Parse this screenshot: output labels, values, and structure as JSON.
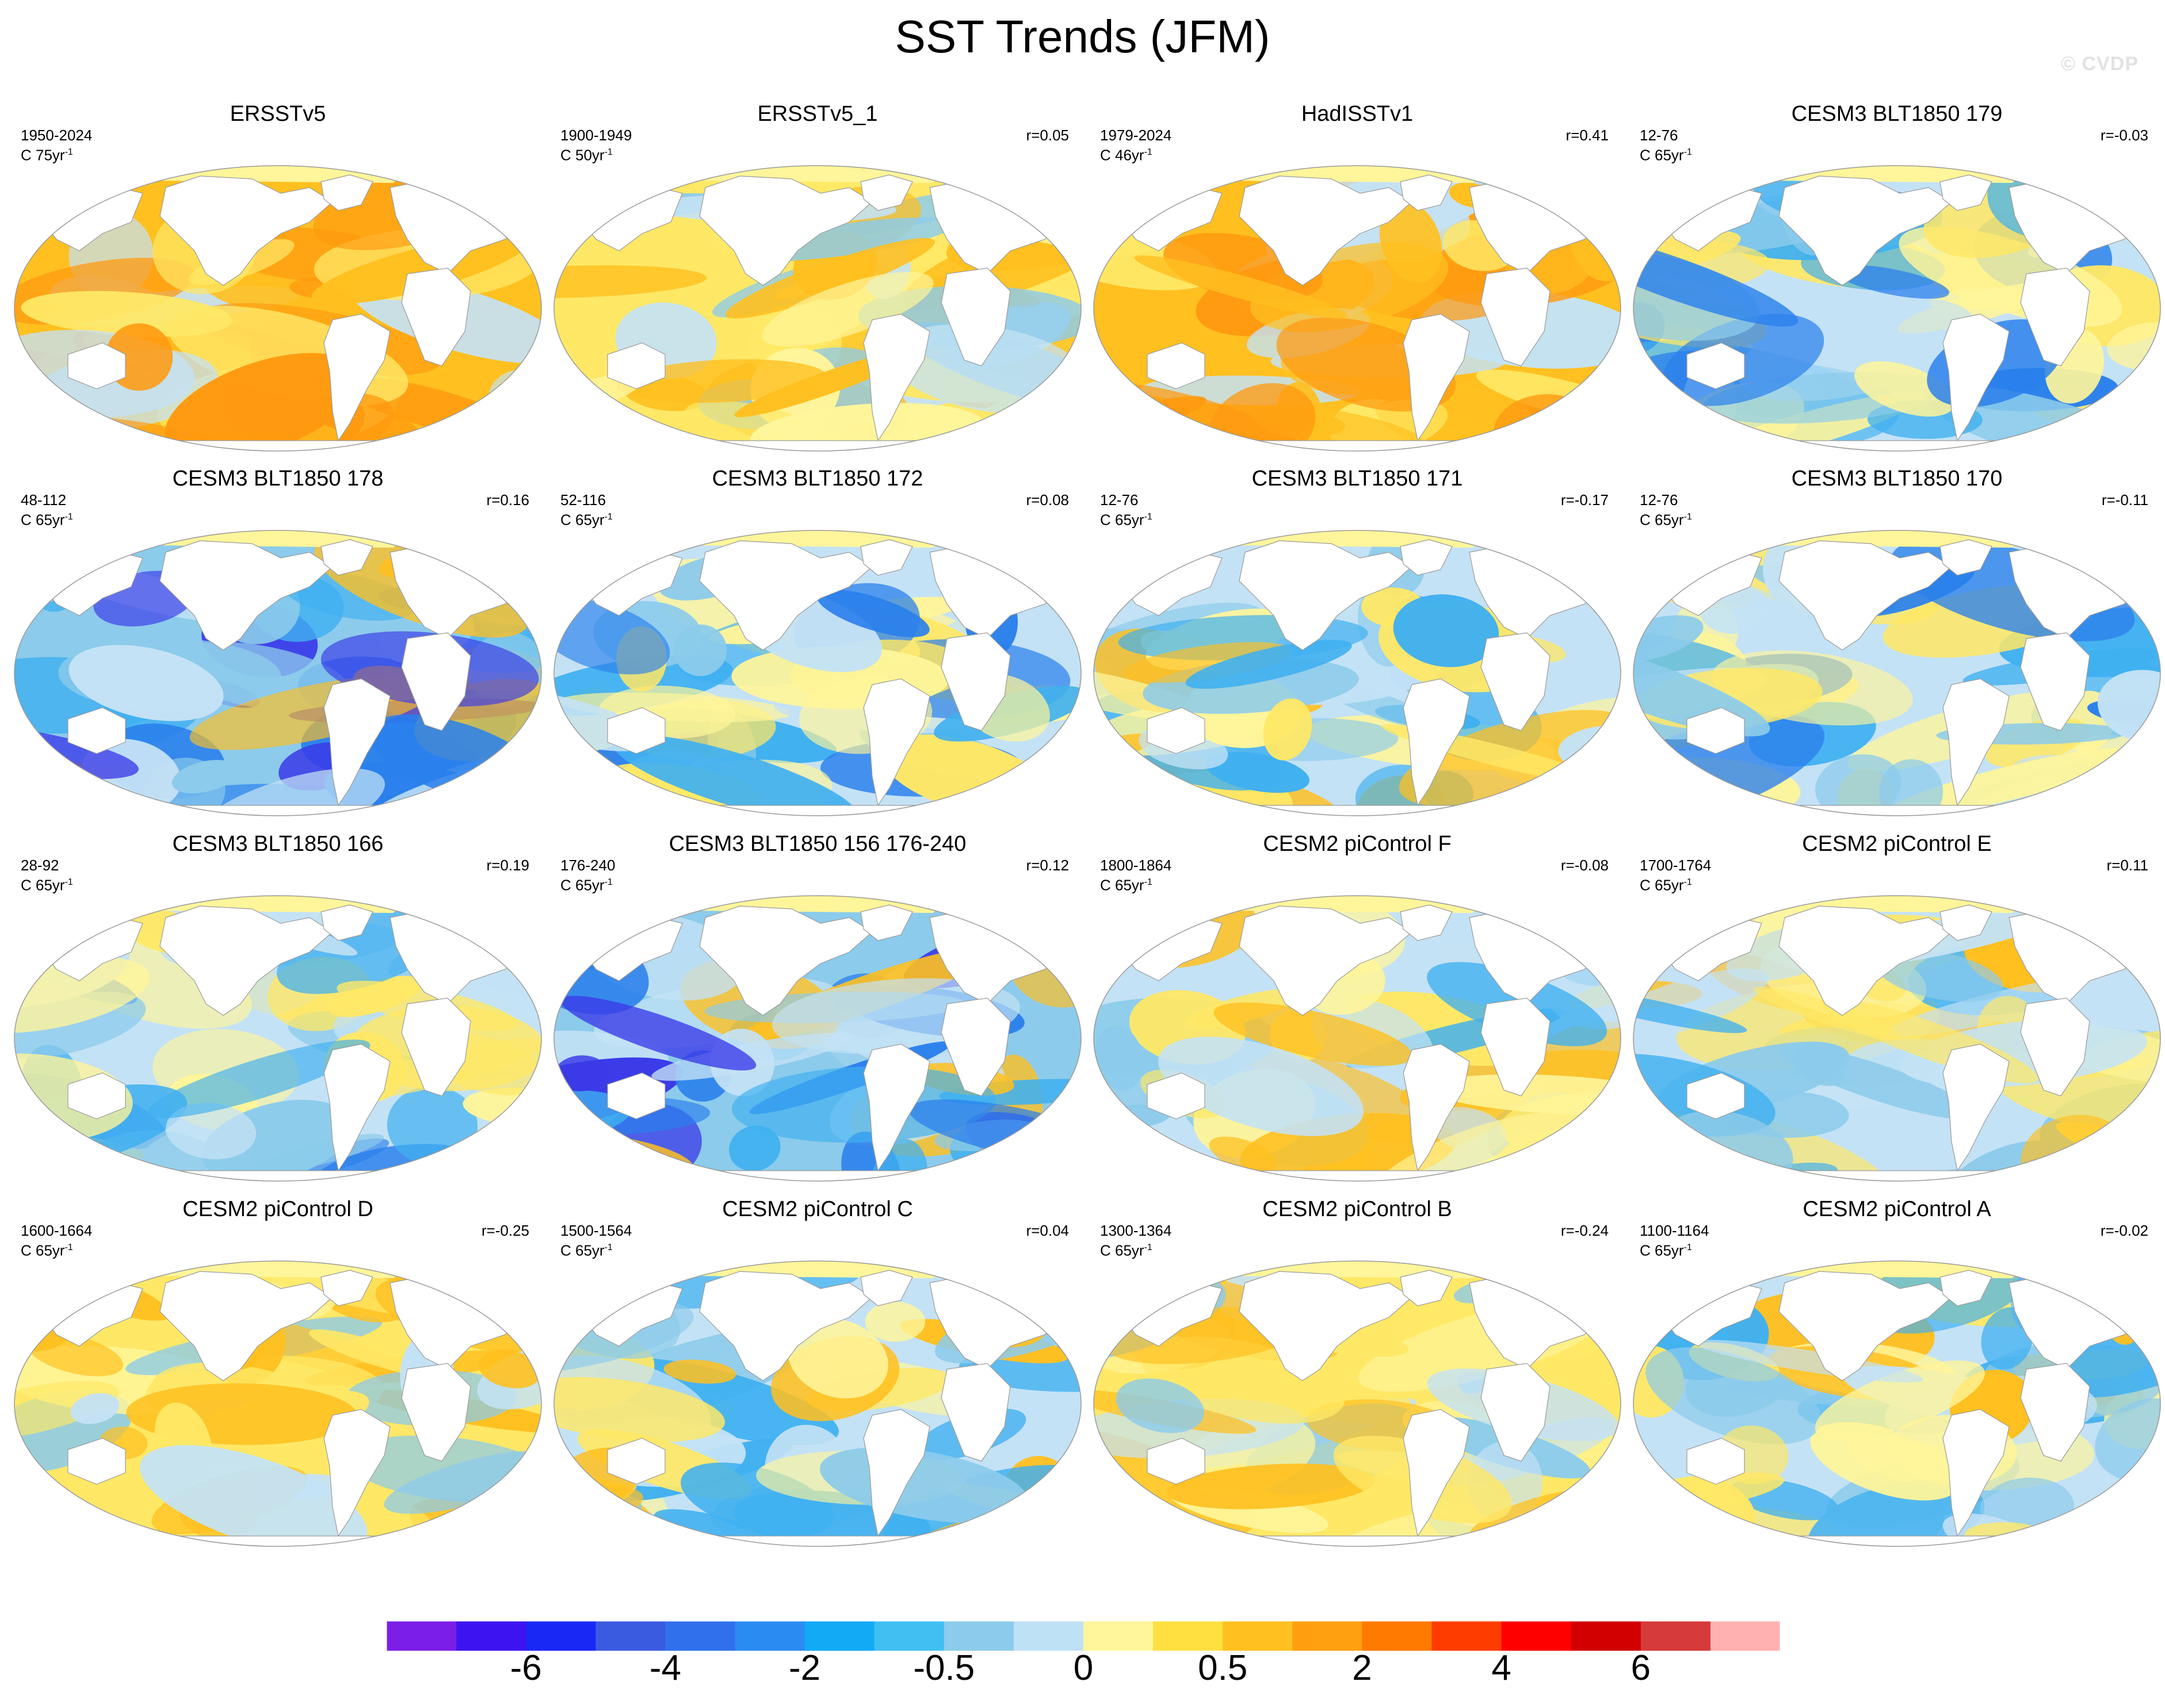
{
  "title": "SST Trends (JFM)",
  "watermark": "© CVDP",
  "panels": [
    {
      "title": "ERSSTv5",
      "years": "1950-2024",
      "rate_prefix": "C 75yr",
      "rate_exp": "-1",
      "corr": "",
      "pattern": "warm-strong"
    },
    {
      "title": "ERSSTv5_1",
      "years": "1900-1949",
      "rate_prefix": "C 50yr",
      "rate_exp": "-1",
      "corr": "r=0.05",
      "pattern": "warm-mixed"
    },
    {
      "title": "HadISSTv1",
      "years": "1979-2024",
      "rate_prefix": "C 46yr",
      "rate_exp": "-1",
      "corr": "r=0.41",
      "pattern": "warm-strong"
    },
    {
      "title": "CESM3 BLT1850 179",
      "years": "12-76",
      "rate_prefix": "C 65yr",
      "rate_exp": "-1",
      "corr": "r=-0.03",
      "pattern": "cool-mixed"
    },
    {
      "title": "CESM3 BLT1850 178",
      "years": "48-112",
      "rate_prefix": "C 65yr",
      "rate_exp": "-1",
      "corr": "r=0.16",
      "pattern": "cool-strong"
    },
    {
      "title": "CESM3 BLT1850 172",
      "years": "52-116",
      "rate_prefix": "C 65yr",
      "rate_exp": "-1",
      "corr": "r=0.08",
      "pattern": "cool-mixed"
    },
    {
      "title": "CESM3 BLT1850 171",
      "years": "12-76",
      "rate_prefix": "C 65yr",
      "rate_exp": "-1",
      "corr": "r=-0.17",
      "pattern": "mixed"
    },
    {
      "title": "CESM3 BLT1850 170",
      "years": "12-76",
      "rate_prefix": "C 65yr",
      "rate_exp": "-1",
      "corr": "r=-0.11",
      "pattern": "cool-mixed"
    },
    {
      "title": "CESM3 BLT1850 166",
      "years": "28-92",
      "rate_prefix": "C 65yr",
      "rate_exp": "-1",
      "corr": "r=0.19",
      "pattern": "cool-mixed"
    },
    {
      "title": "CESM3 BLT1850 156 176-240",
      "years": "176-240",
      "rate_prefix": "C 65yr",
      "rate_exp": "-1",
      "corr": "r=0.12",
      "pattern": "cool-strong"
    },
    {
      "title": "CESM2 piControl F",
      "years": "1800-1864",
      "rate_prefix": "C 65yr",
      "rate_exp": "-1",
      "corr": "r=-0.08",
      "pattern": "mixed"
    },
    {
      "title": "CESM2 piControl E",
      "years": "1700-1764",
      "rate_prefix": "C 65yr",
      "rate_exp": "-1",
      "corr": "r=0.11",
      "pattern": "mixed"
    },
    {
      "title": "CESM2 piControl D",
      "years": "1600-1664",
      "rate_prefix": "C 65yr",
      "rate_exp": "-1",
      "corr": "r=-0.25",
      "pattern": "warm-mixed"
    },
    {
      "title": "CESM2 piControl C",
      "years": "1500-1564",
      "rate_prefix": "C 65yr",
      "rate_exp": "-1",
      "corr": "r=0.04",
      "pattern": "mixed"
    },
    {
      "title": "CESM2 piControl B",
      "years": "1300-1364",
      "rate_prefix": "C 65yr",
      "rate_exp": "-1",
      "corr": "r=-0.24",
      "pattern": "warm-mixed"
    },
    {
      "title": "CESM2 piControl A",
      "years": "1100-1164",
      "rate_prefix": "C 65yr",
      "rate_exp": "-1",
      "corr": "r=-0.02",
      "pattern": "mixed"
    }
  ],
  "colorbar": {
    "colors": [
      "#7b1ee8",
      "#3d14f0",
      "#1a28f5",
      "#3a5ae0",
      "#3070ec",
      "#2a8cf2",
      "#12aaf5",
      "#40c0f2",
      "#8ccbeb",
      "#bfe1f5",
      "#fff59a",
      "#ffe040",
      "#ffc020",
      "#ffa010",
      "#ff7a00",
      "#ff3c00",
      "#ff0000",
      "#d20000",
      "#d63a3a",
      "#ffb0b0"
    ],
    "labels": [
      "-6",
      "-4",
      "-2",
      "-0.5",
      "0",
      "0.5",
      "2",
      "4",
      "6"
    ]
  },
  "palette": {
    "deep_warm": "#ff9a10",
    "warm": "#ffc020",
    "light_warm": "#ffe866",
    "pale": "#fff59a",
    "pale_cool": "#c4e2f5",
    "cool": "#8ccbeb",
    "mid_cool": "#40b0f0",
    "deep_cool": "#2a80ec",
    "very_cool": "#3a3ae8",
    "land": "#ffffff",
    "arctic": "#fff59a",
    "outline": "#9a9a9a"
  }
}
